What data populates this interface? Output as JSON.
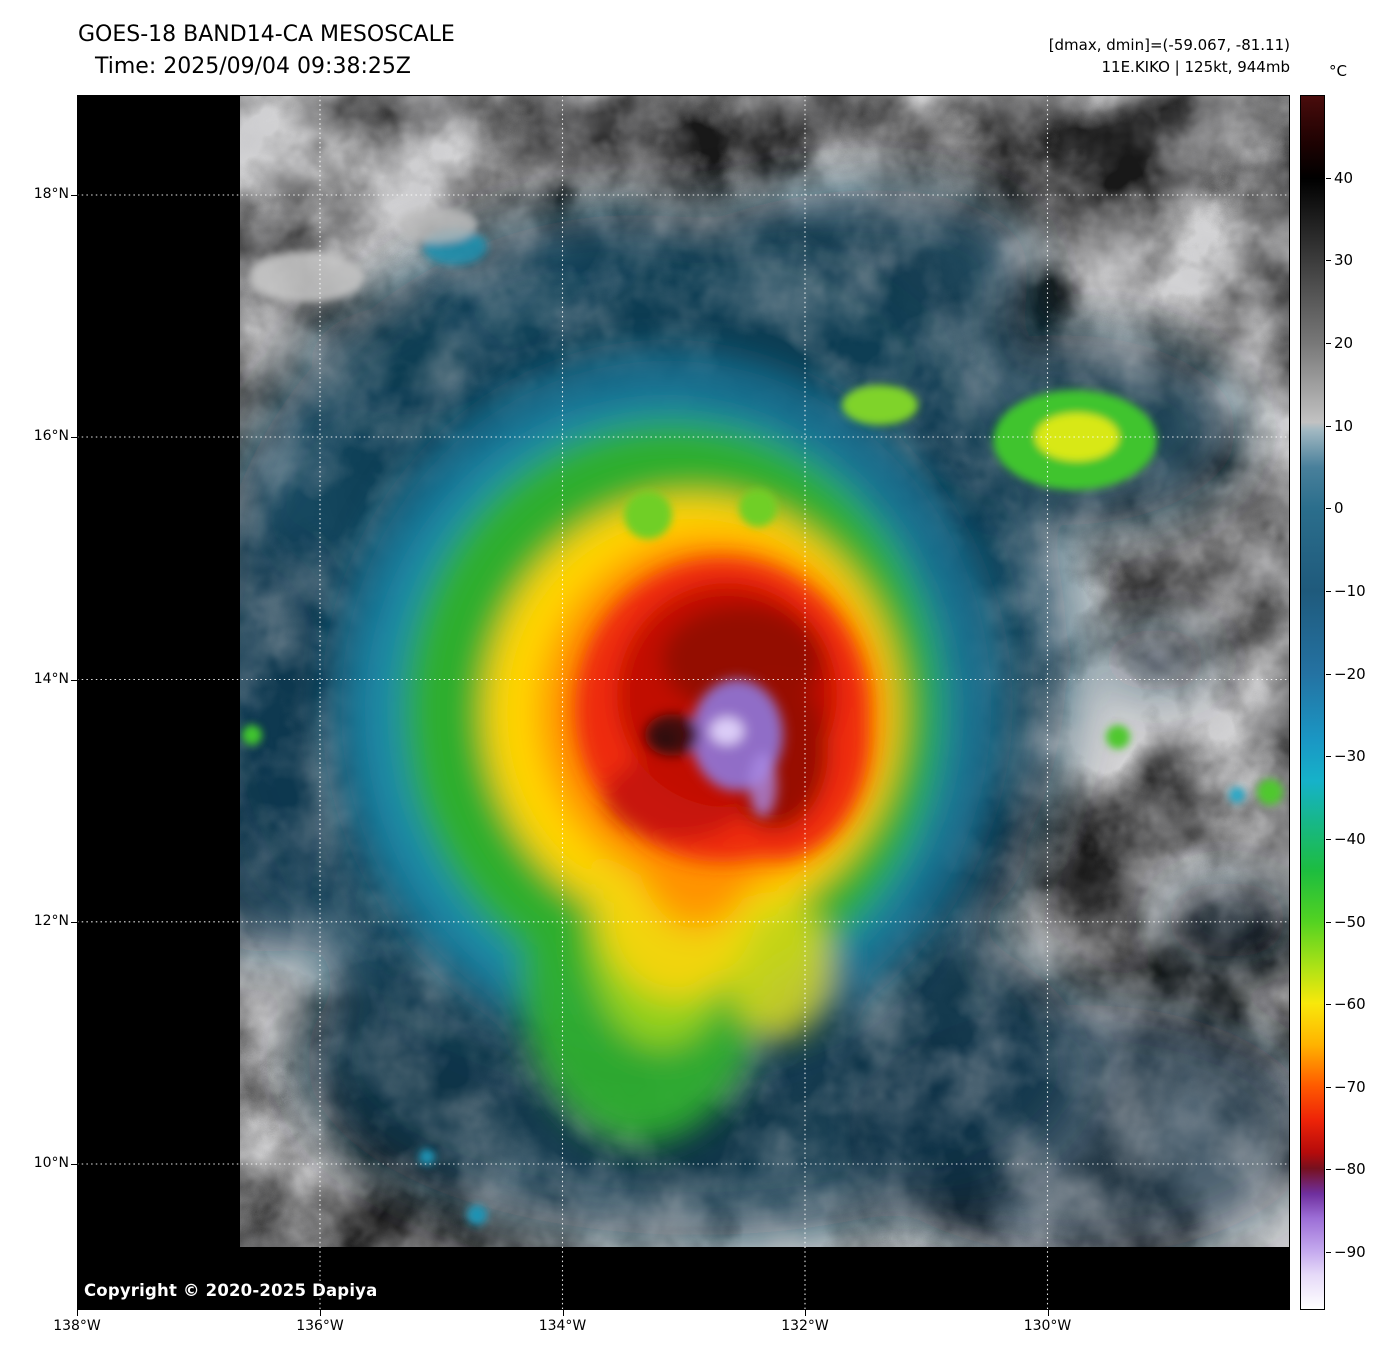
{
  "header": {
    "title": "GOES-18 BAND14-CA MESOSCALE",
    "time_label": "Time: 2025/09/04 09:38:25Z",
    "range_label": "[dmax, dmin]=(-59.067, -81.11)",
    "storm_label": "11E.KIKO | 125kt, 944mb"
  },
  "map": {
    "lat_ticks": [
      "18°N",
      "16°N",
      "14°N",
      "12°N",
      "10°N"
    ],
    "lon_ticks": [
      "138°W",
      "136°W",
      "134°W",
      "132°W",
      "130°W"
    ],
    "copyright": "Copyright © 2020-2025 Dapiya"
  },
  "colorbar": {
    "unit": "°C",
    "tick_labels": [
      "40",
      "30",
      "20",
      "10",
      "0",
      "−10",
      "−20",
      "−30",
      "−40",
      "−50",
      "−60",
      "−70",
      "−80",
      "−90"
    ],
    "tick_values": [
      40,
      30,
      20,
      10,
      0,
      -10,
      -20,
      -30,
      -40,
      -50,
      -60,
      -70,
      -80,
      -90
    ]
  },
  "colors": {
    "background": "#ffffff",
    "nodata": "#000000",
    "grid": "#ffffff"
  }
}
